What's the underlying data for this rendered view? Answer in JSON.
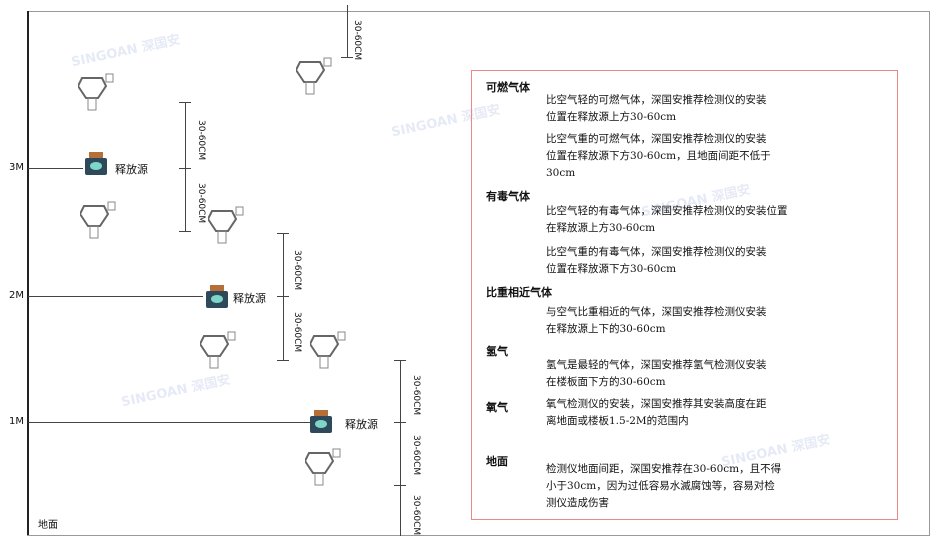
{
  "levels": {
    "l3": "3M",
    "l2": "2M",
    "l1": "1M",
    "ground": "地面"
  },
  "source_label": "释放源",
  "dimension_label": "30-60CM",
  "watermark": "SINGOAN 深国安",
  "panel": {
    "sections": [
      {
        "heading": "可燃气体",
        "paras": [
          "比空气轻的可燃气体，深国安推荐检测仪的安装\n位置在释放源上方30-60cm",
          "比空气重的可燃气体，深国安推荐检测仪的安装\n位置在释放源下方30-60cm，且地面间距不低于\n30cm"
        ]
      },
      {
        "heading": "有毒气体",
        "paras": [
          "比空气轻的有毒气体，深国安推荐检测仪的安装位置\n在释放源上方30-60cm",
          "比空气重的有毒气体，深国安推荐检测仪的安装\n位置在释放源下方30-60cm"
        ]
      },
      {
        "heading": "比重相近气体",
        "paras": [
          "与空气比重相近的气体，深国安推荐检测仪安装\n在释放源上下的30-60cm"
        ]
      },
      {
        "heading": "氢气",
        "paras": [
          "氢气是最轻的气体，深国安推荐氢气检测仪安装\n在楼板面下方的30-60cm"
        ]
      },
      {
        "heading": "氧气",
        "paras": [
          "氧气检测仪的安装，深国安推荐其安装高度在距\n离地面或楼板1.5-2M的范围内"
        ]
      },
      {
        "heading": "地面",
        "paras": [
          "检测仪地面间距，深国安推荐在30-60cm，且不得\n小于30cm，因为过低容易水滅腐蚀等，容易对检\n测仪造成伤害"
        ]
      }
    ]
  },
  "colors": {
    "panel_border": "#e88888",
    "source_body": "#2e4a5a",
    "source_cap": "#b5703a"
  }
}
